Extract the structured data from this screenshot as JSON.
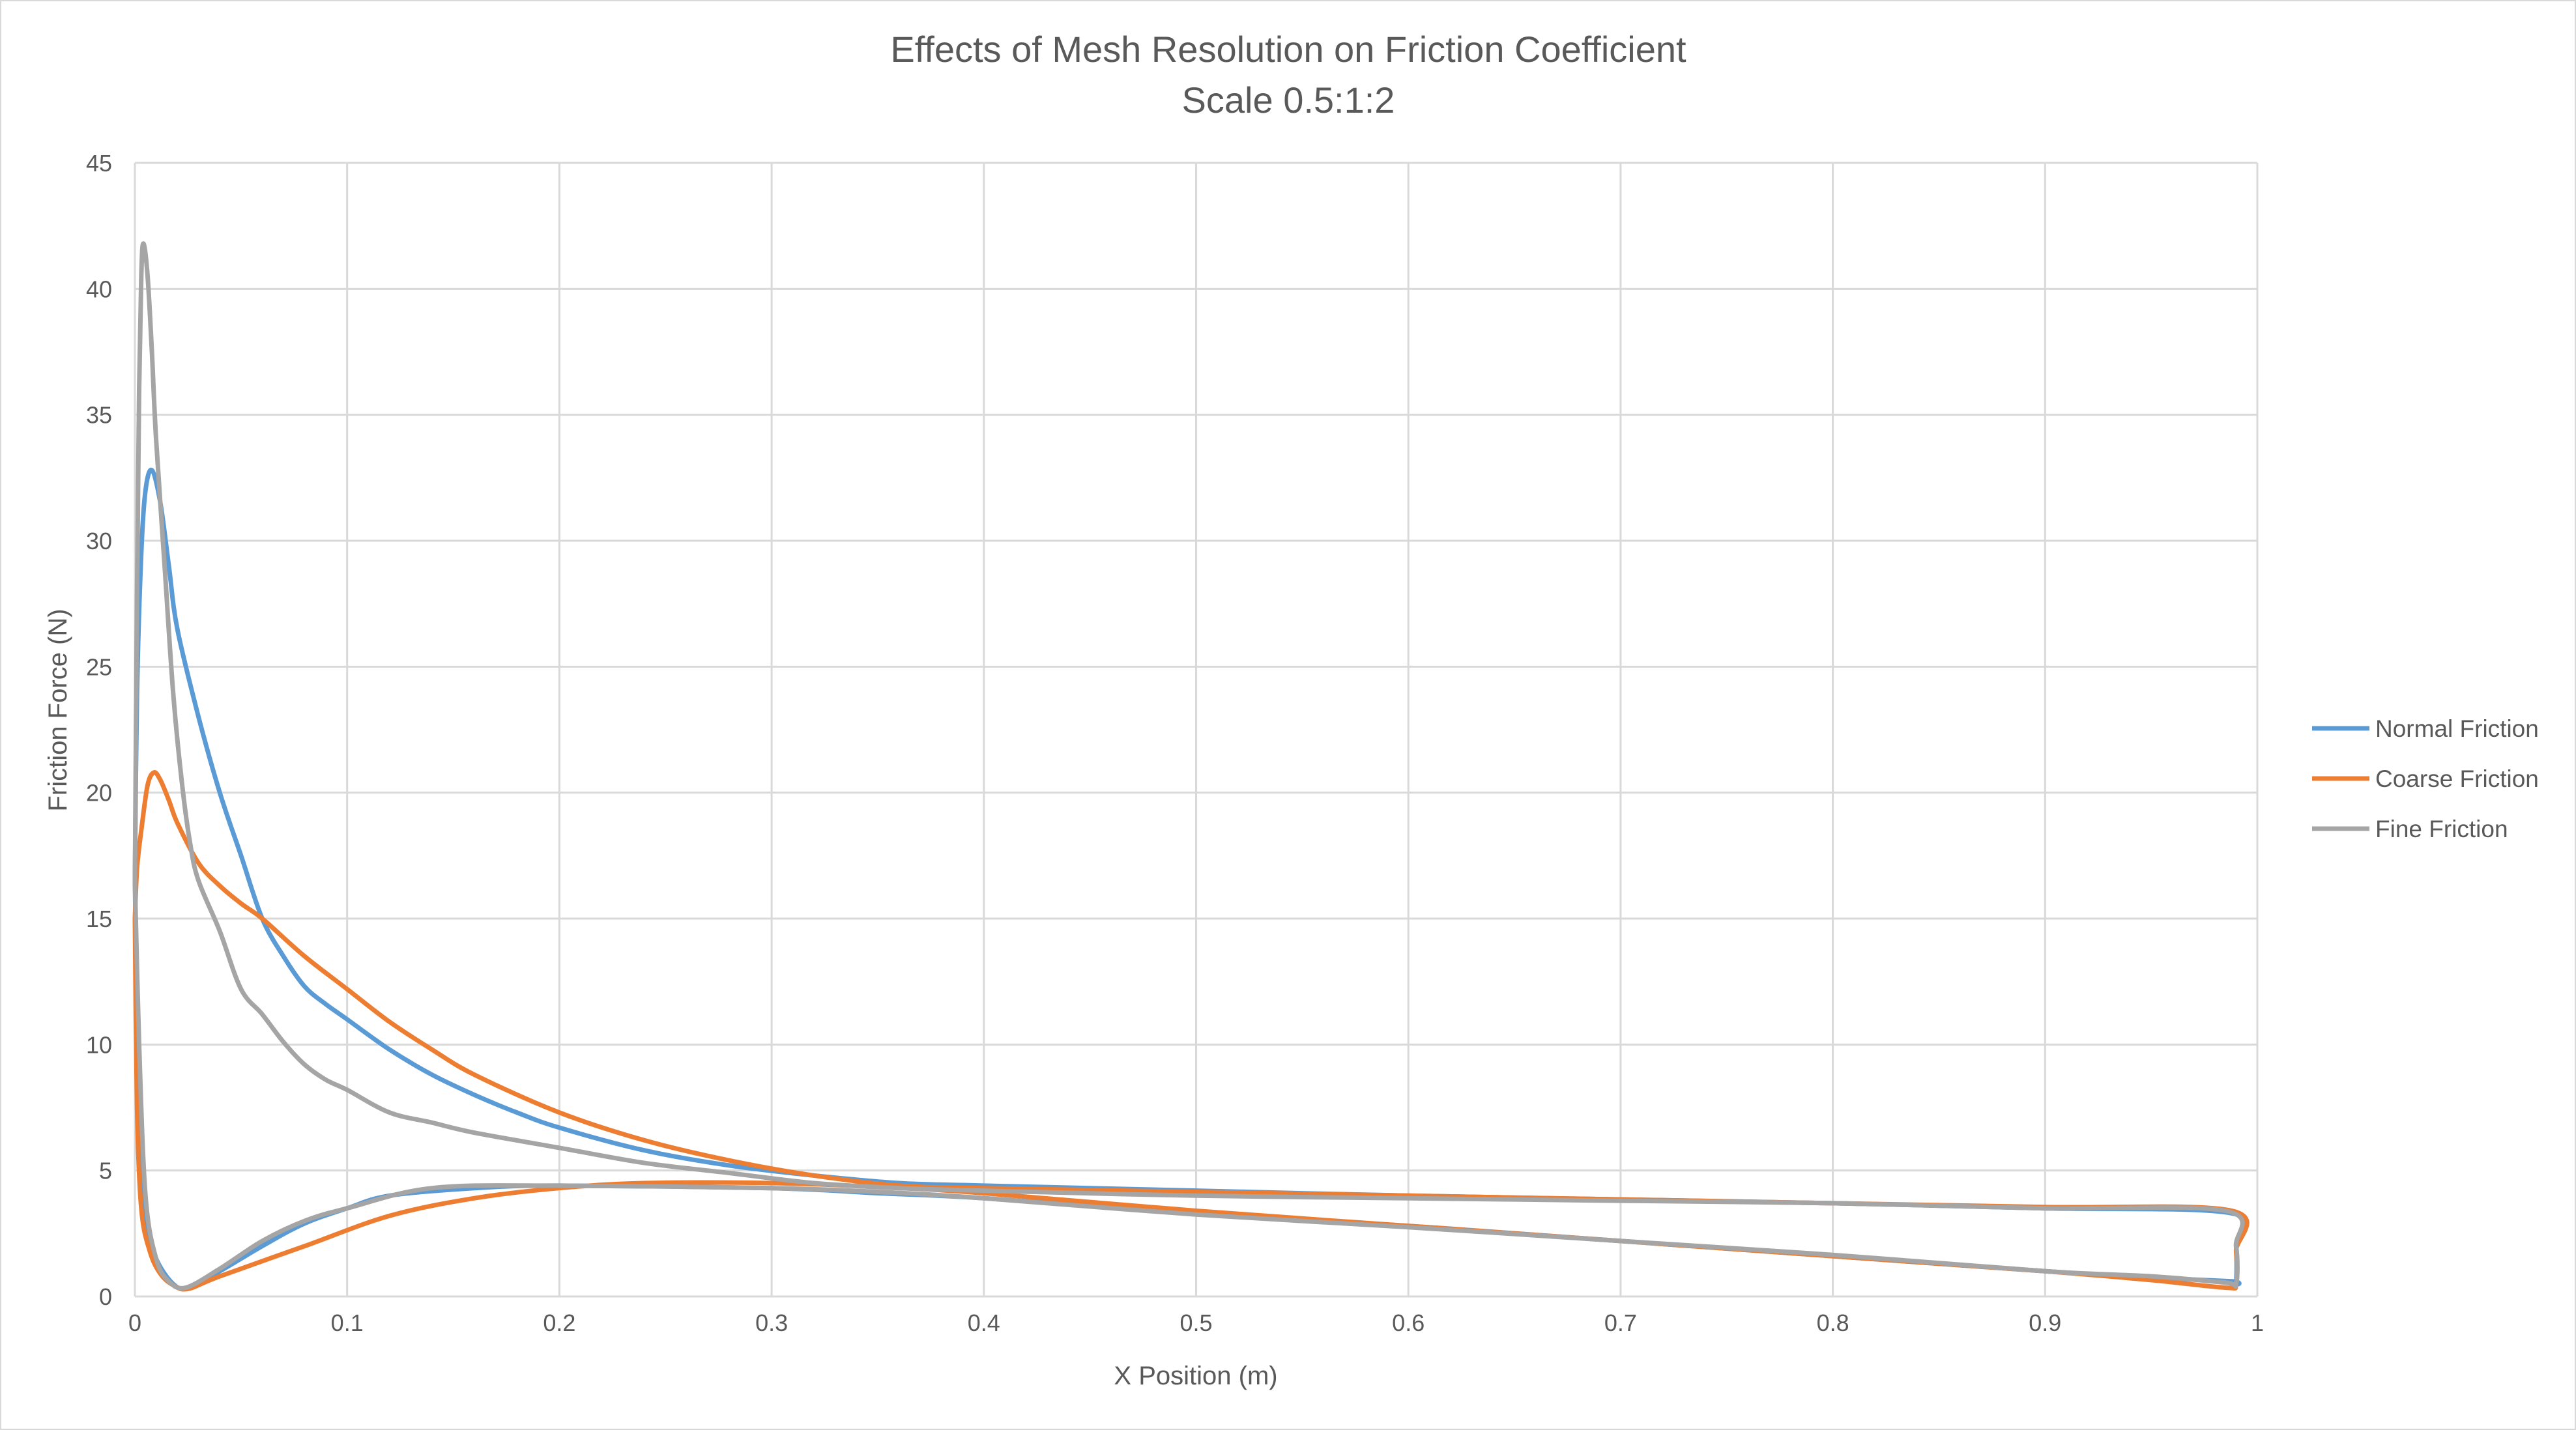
{
  "chart_data": {
    "type": "scatter",
    "title": "Effects of Mesh Resolution on Friction Coefficient",
    "subtitle": "Scale 0.5:1:2",
    "xlabel": "X Position (m)",
    "ylabel": "Friction Force (N)",
    "xlim": [
      0,
      1
    ],
    "ylim": [
      0,
      45
    ],
    "x_ticks": [
      "0",
      "0.1",
      "0.2",
      "0.3",
      "0.4",
      "0.5",
      "0.6",
      "0.7",
      "0.8",
      "0.9",
      "1"
    ],
    "y_ticks": [
      "0",
      "5",
      "10",
      "15",
      "20",
      "25",
      "30",
      "35",
      "40",
      "45"
    ],
    "grid": true,
    "legend_position": "right",
    "series": [
      {
        "name": "Normal Friction",
        "color": "#5b9bd5",
        "x": [
          0.0,
          0.001,
          0.003,
          0.005,
          0.008,
          0.012,
          0.016,
          0.02,
          0.03,
          0.04,
          0.05,
          0.06,
          0.07,
          0.08,
          0.09,
          0.1,
          0.12,
          0.14,
          0.16,
          0.18,
          0.2,
          0.24,
          0.28,
          0.32,
          0.36,
          0.4,
          0.5,
          0.6,
          0.7,
          0.8,
          0.9,
          0.988,
          0.99,
          0.99,
          0.988,
          0.95,
          0.9,
          0.8,
          0.7,
          0.6,
          0.5,
          0.4,
          0.35,
          0.3,
          0.2,
          0.16,
          0.12,
          0.1,
          0.08,
          0.06,
          0.04,
          0.025,
          0.018,
          0.01,
          0.005,
          0.002,
          0.0
        ],
        "y": [
          16.5,
          24.0,
          29.5,
          32.0,
          32.8,
          31.5,
          29.0,
          26.5,
          23.0,
          20.0,
          17.5,
          15.0,
          13.5,
          12.3,
          11.6,
          11.0,
          9.8,
          8.8,
          8.0,
          7.3,
          6.7,
          5.8,
          5.2,
          4.8,
          4.5,
          4.4,
          4.2,
          4.0,
          3.85,
          3.7,
          3.5,
          3.3,
          2.0,
          0.6,
          0.6,
          0.75,
          1.0,
          1.6,
          2.2,
          2.8,
          3.3,
          3.9,
          4.1,
          4.3,
          4.4,
          4.3,
          4.0,
          3.5,
          2.9,
          2.0,
          1.0,
          0.35,
          0.5,
          1.5,
          3.0,
          6.5,
          16.5
        ]
      },
      {
        "name": "Coarse Friction",
        "color": "#ed7d31",
        "x": [
          0.0,
          0.001,
          0.003,
          0.006,
          0.009,
          0.012,
          0.016,
          0.02,
          0.03,
          0.04,
          0.05,
          0.06,
          0.08,
          0.1,
          0.12,
          0.14,
          0.16,
          0.2,
          0.24,
          0.28,
          0.32,
          0.36,
          0.4,
          0.5,
          0.6,
          0.7,
          0.8,
          0.9,
          0.988,
          0.99,
          0.99,
          0.985,
          0.95,
          0.9,
          0.8,
          0.7,
          0.6,
          0.5,
          0.4,
          0.35,
          0.3,
          0.24,
          0.2,
          0.16,
          0.12,
          0.08,
          0.04,
          0.025,
          0.018,
          0.012,
          0.007,
          0.003,
          0.001,
          0.0
        ],
        "y": [
          15.0,
          17.0,
          18.5,
          20.3,
          20.8,
          20.5,
          19.7,
          18.8,
          17.2,
          16.3,
          15.6,
          15.0,
          13.5,
          12.2,
          10.9,
          9.8,
          8.8,
          7.3,
          6.2,
          5.4,
          4.8,
          4.4,
          4.3,
          4.15,
          4.0,
          3.85,
          3.7,
          3.55,
          3.4,
          1.8,
          0.5,
          0.35,
          0.65,
          1.0,
          1.6,
          2.2,
          2.8,
          3.4,
          4.1,
          4.35,
          4.5,
          4.5,
          4.3,
          3.9,
          3.2,
          2.0,
          0.8,
          0.3,
          0.45,
          0.9,
          1.8,
          3.5,
          7.5,
          15.0
        ]
      },
      {
        "name": "Fine Friction",
        "color": "#a5a5a5",
        "x": [
          0.0,
          0.001,
          0.002,
          0.003,
          0.004,
          0.006,
          0.008,
          0.01,
          0.014,
          0.018,
          0.022,
          0.026,
          0.03,
          0.04,
          0.05,
          0.06,
          0.07,
          0.08,
          0.09,
          0.1,
          0.12,
          0.14,
          0.16,
          0.2,
          0.24,
          0.28,
          0.32,
          0.36,
          0.4,
          0.5,
          0.6,
          0.7,
          0.8,
          0.9,
          0.985,
          0.99,
          0.99,
          0.985,
          0.95,
          0.9,
          0.8,
          0.7,
          0.6,
          0.5,
          0.4,
          0.35,
          0.3,
          0.2,
          0.14,
          0.1,
          0.08,
          0.06,
          0.04,
          0.024,
          0.016,
          0.01,
          0.005,
          0.002,
          0.0
        ],
        "y": [
          16.5,
          28.0,
          36.0,
          40.5,
          41.8,
          40.5,
          37.5,
          34.0,
          29.0,
          24.0,
          20.5,
          18.0,
          16.5,
          14.5,
          12.2,
          11.2,
          10.1,
          9.2,
          8.6,
          8.2,
          7.3,
          6.9,
          6.5,
          5.9,
          5.3,
          4.9,
          4.5,
          4.3,
          4.2,
          4.0,
          3.9,
          3.8,
          3.7,
          3.5,
          3.4,
          2.0,
          0.5,
          0.55,
          0.8,
          1.0,
          1.65,
          2.2,
          2.75,
          3.25,
          3.9,
          4.15,
          4.3,
          4.4,
          4.3,
          3.5,
          3.0,
          2.2,
          1.1,
          0.35,
          0.6,
          1.5,
          4.0,
          10.0,
          16.5
        ]
      }
    ]
  }
}
